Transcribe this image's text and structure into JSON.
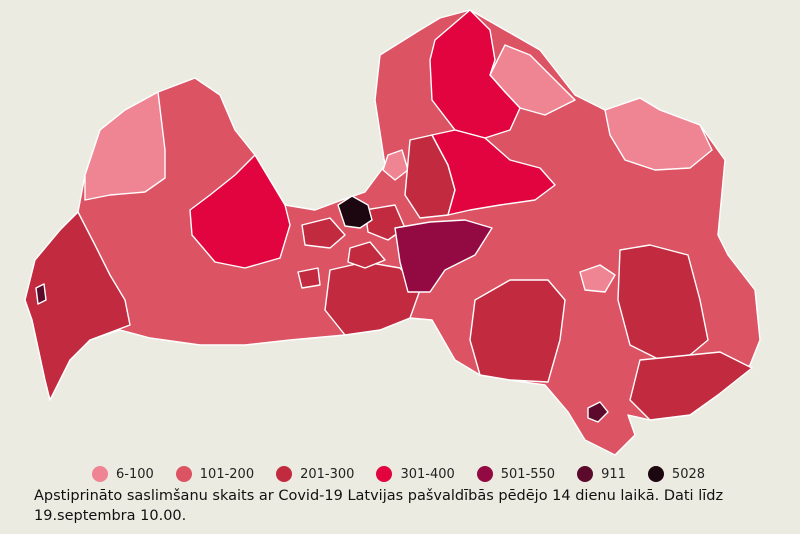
{
  "colors": {
    "background": "#ecebe1",
    "border": "#ffffff",
    "c_6_100": "#ef8493",
    "c_101_200": "#dc5364",
    "c_201_300": "#c22b3f",
    "c_301_400": "#e2043f",
    "c_501_550": "#930942",
    "c_911": "#5c0a2c",
    "c_5028": "#1c0610"
  },
  "legend": [
    {
      "label": "6-100",
      "color": "#ef8493"
    },
    {
      "label": "101-200",
      "color": "#dc5364"
    },
    {
      "label": "201-300",
      "color": "#c22b3f"
    },
    {
      "label": "301-400",
      "color": "#e2043f"
    },
    {
      "label": "501-550",
      "color": "#930942"
    },
    {
      "label": "911",
      "color": "#5c0a2c"
    },
    {
      "label": "5028",
      "color": "#1c0610"
    }
  ],
  "caption": "Apstiprināto saslimšanu skaits ar Covid-19 Latvijas pašvaldībās pēdējo 14 dienu laikā. Dati līdz 19.septembra 10.00."
}
